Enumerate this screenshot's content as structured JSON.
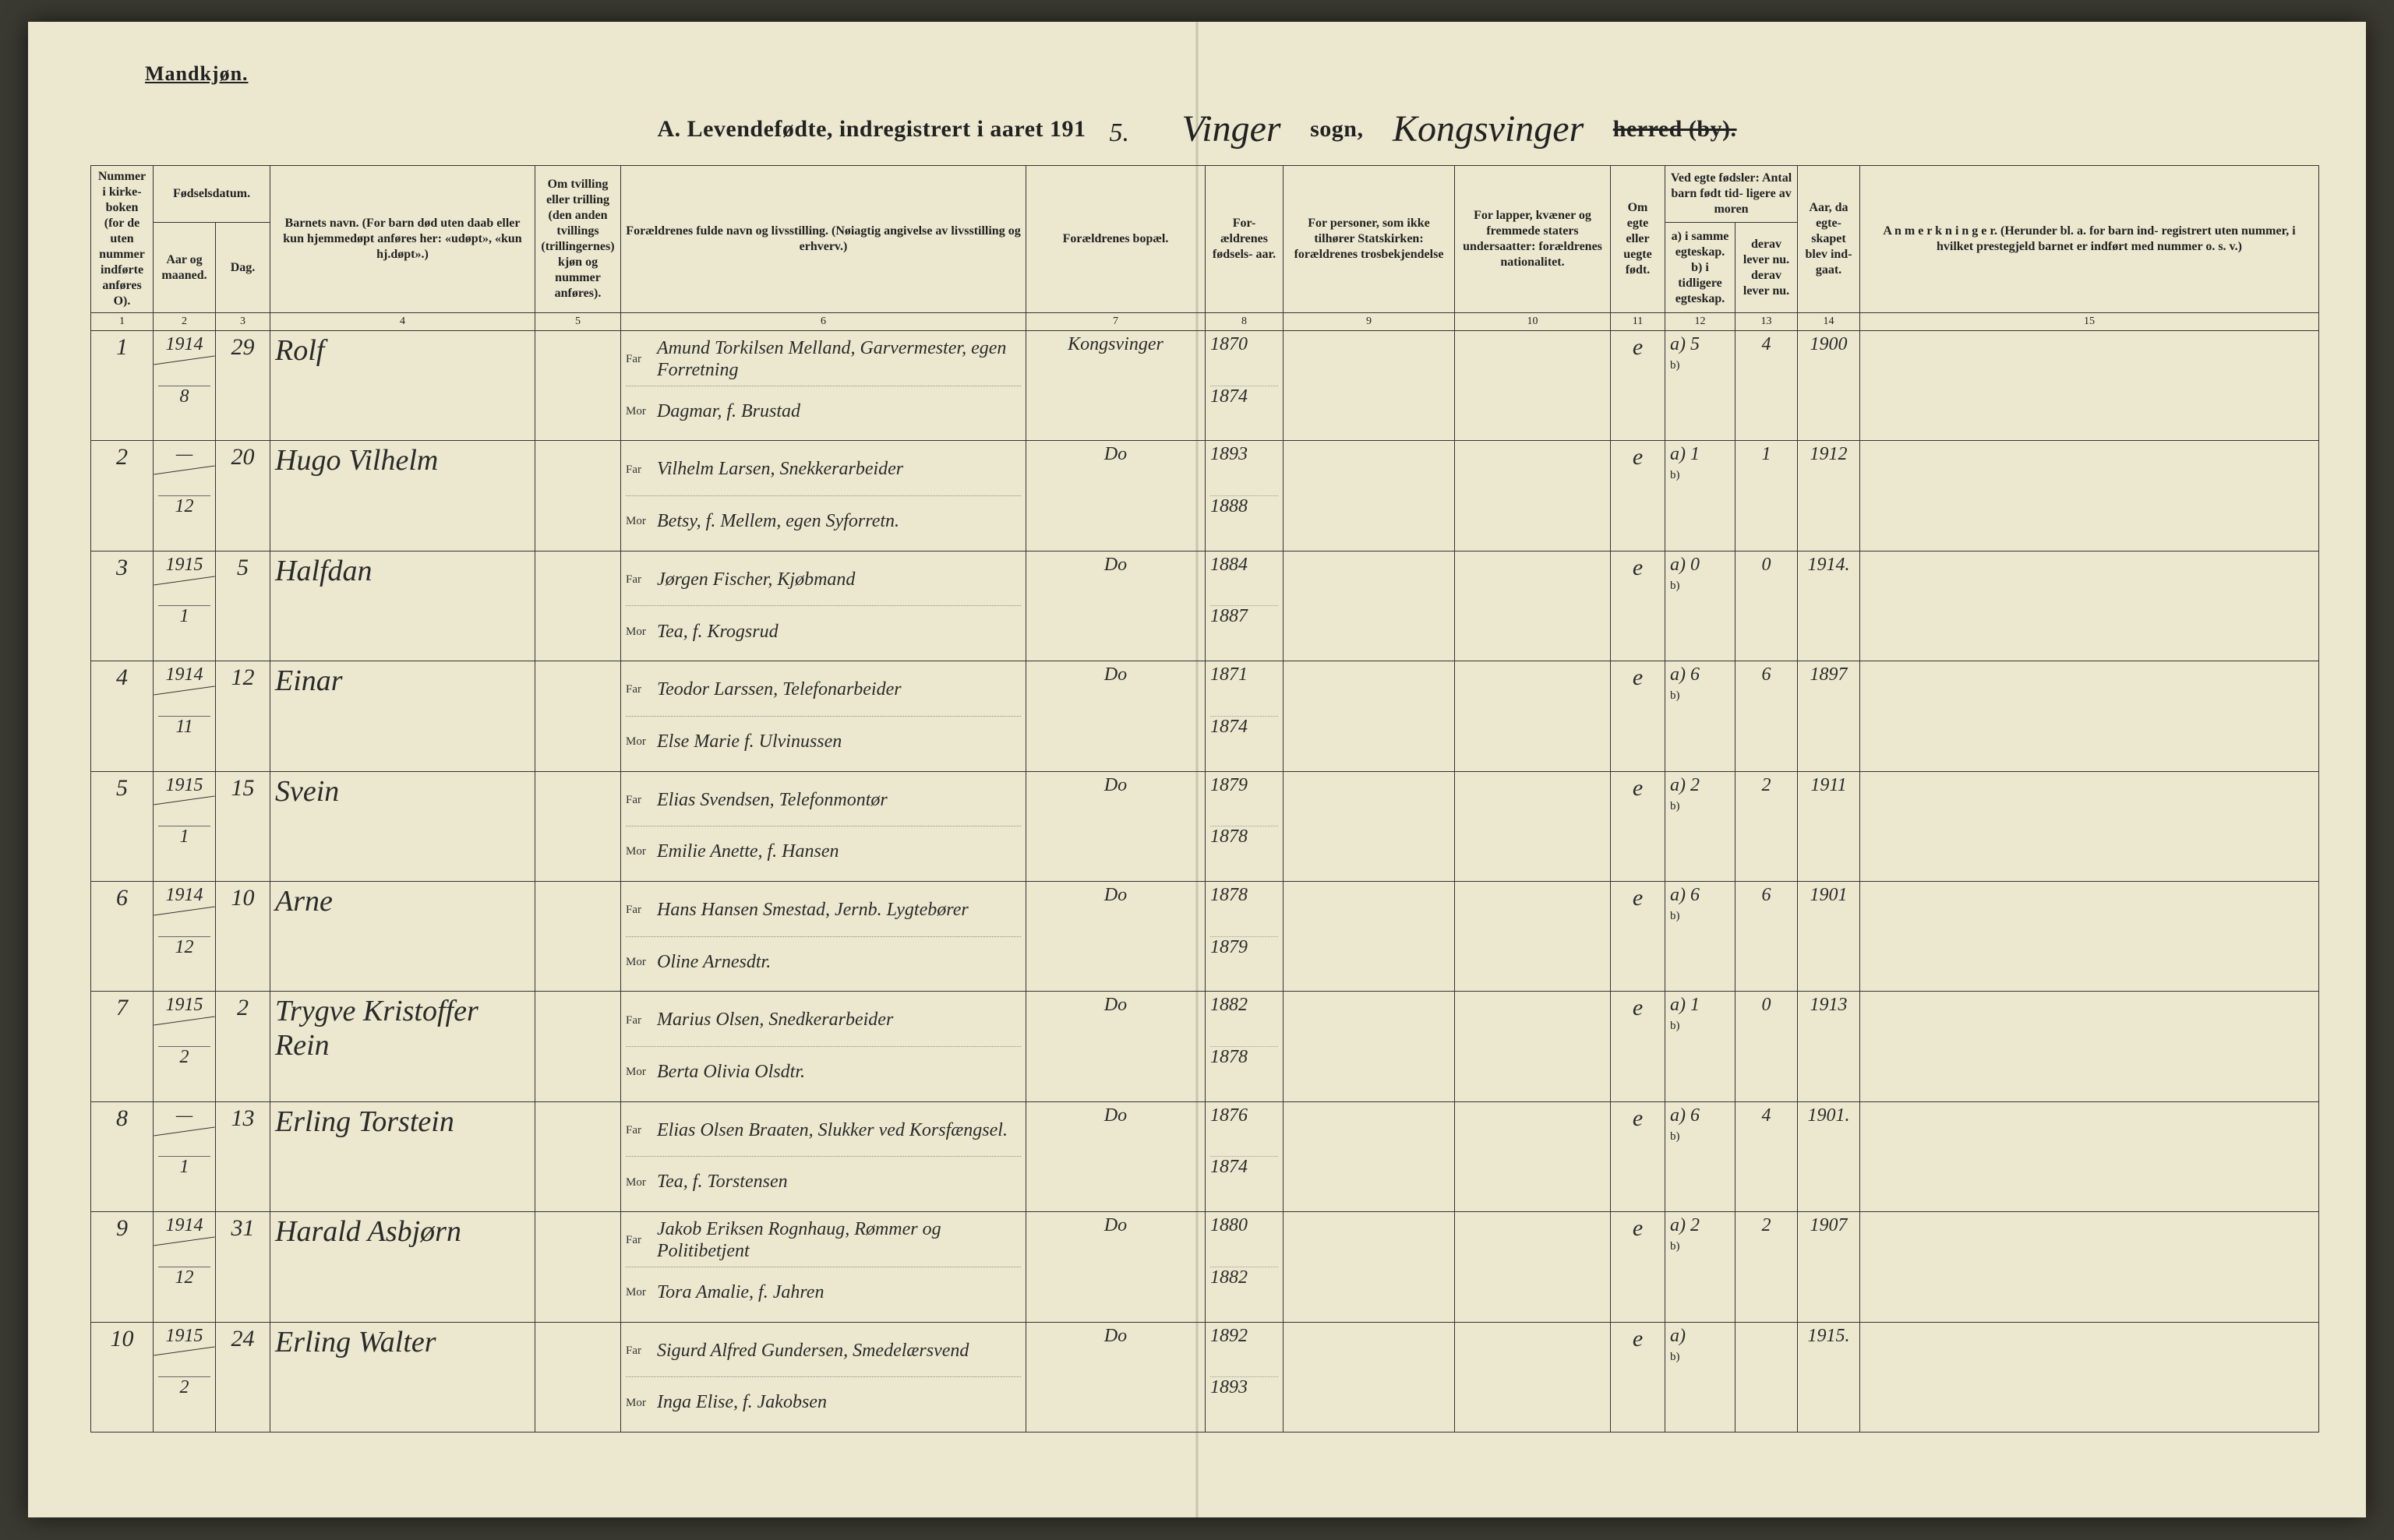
{
  "header": {
    "corner": "Mandkjøn.",
    "title_a": "A.  Levendefødte, indregistrert i aaret 191",
    "title_year_suffix": "5.",
    "sogn_script": "Vinger",
    "sogn_label": "sogn,",
    "parish_script": "Kongsvinger",
    "herred_by": "herred (by)."
  },
  "columns": {
    "c1": "Nummer i kirke- boken (for de uten nummer indførte anføres O).",
    "c2_top": "Fødselsdatum.",
    "c2a": "Aar og maaned.",
    "c2b": "Dag.",
    "c4": "Barnets navn.\n(For barn død uten daab eller kun hjemmedøpt anføres her: «udøpt», «kun hj.døpt».)",
    "c5": "Om tvilling eller trilling (den anden tvillings (trillingernes) kjøn og nummer anføres).",
    "c6": "Forældrenes fulde navn og livsstilling.\n(Nøiagtig angivelse av livsstilling og erhverv.)",
    "c7": "Forældrenes bopæl.",
    "c8": "For- ældrenes fødsels- aar.",
    "c9": "For personer, som ikke tilhører Statskirken: forældrenes trosbekjendelse",
    "c10": "For lapper, kvæner og fremmede staters undersaatter: forældrenes nationalitet.",
    "c11": "Om egte eller uegte født.",
    "c12_top": "Ved egte fødsler: Antal barn født tid- ligere av moren",
    "c12a": "a) i samme egteskap.\nb) i tidligere egteskap.",
    "c12b": "derav lever nu. derav lever nu.",
    "c14": "Aar, da egte- skapet blev ind- gaat.",
    "c15": "A n m e r k n i n g e r.\n(Herunder bl. a. for barn ind- registrert uten nummer, i hvilket prestegjeld barnet er indført med nummer o. s. v.)"
  },
  "colnums": [
    "1",
    "2",
    "3",
    "4",
    "5",
    "6",
    "7",
    "8",
    "9",
    "10",
    "11",
    "12",
    "13",
    "14",
    "15"
  ],
  "rows": [
    {
      "num": "1",
      "year": "1914",
      "month": "8",
      "day": "29",
      "name": "Rolf",
      "father": "Amund Torkilsen Melland, Garvermester, egen Forretning",
      "mother": "Dagmar, f. Brustad",
      "bopel": "Kongsvinger",
      "fy": "1870",
      "my": "1874",
      "egte": "e",
      "a": "5",
      "lever": "4",
      "marr": "1900"
    },
    {
      "num": "2",
      "year": "—",
      "month": "12",
      "day": "20",
      "name": "Hugo Vilhelm",
      "father": "Vilhelm Larsen, Snekkerarbeider",
      "mother": "Betsy, f. Mellem, egen Syforretn.",
      "bopel": "Do",
      "fy": "1893",
      "my": "1888",
      "egte": "e",
      "a": "1",
      "lever": "1",
      "marr": "1912"
    },
    {
      "num": "3",
      "year": "1915",
      "month": "1",
      "day": "5",
      "name": "Halfdan",
      "father": "Jørgen Fischer, Kjøbmand",
      "mother": "Tea, f. Krogsrud",
      "bopel": "Do",
      "fy": "1884",
      "my": "1887",
      "egte": "e",
      "a": "0",
      "lever": "0",
      "marr": "1914."
    },
    {
      "num": "4",
      "year": "1914",
      "month": "11",
      "day": "12",
      "name": "Einar",
      "father": "Teodor Larssen, Telefonarbeider",
      "mother": "Else Marie f. Ulvinussen",
      "bopel": "Do",
      "fy": "1871",
      "my": "1874",
      "egte": "e",
      "a": "6",
      "lever": "6",
      "marr": "1897"
    },
    {
      "num": "5",
      "year": "1915",
      "month": "1",
      "day": "15",
      "name": "Svein",
      "father": "Elias Svendsen, Telefonmontør",
      "mother": "Emilie Anette, f. Hansen",
      "bopel": "Do",
      "fy": "1879",
      "my": "1878",
      "egte": "e",
      "a": "2",
      "lever": "2",
      "marr": "1911"
    },
    {
      "num": "6",
      "year": "1914",
      "month": "12",
      "day": "10",
      "name": "Arne",
      "father": "Hans Hansen Smestad, Jernb. Lygtebører",
      "mother": "Oline Arnesdtr.",
      "bopel": "Do",
      "fy": "1878",
      "my": "1879",
      "egte": "e",
      "a": "6",
      "lever": "6",
      "marr": "1901"
    },
    {
      "num": "7",
      "year": "1915",
      "month": "2",
      "day": "2",
      "name": "Trygve Kristoffer Rein",
      "father": "Marius Olsen, Snedkerarbeider",
      "mother": "Berta Olivia Olsdtr.",
      "bopel": "Do",
      "fy": "1882",
      "my": "1878",
      "egte": "e",
      "a": "1",
      "lever": "0",
      "marr": "1913"
    },
    {
      "num": "8",
      "year": "—",
      "month": "1",
      "day": "13",
      "name": "Erling Torstein",
      "father": "Elias Olsen Braaten, Slukker ved Korsfængsel.",
      "mother": "Tea, f. Torstensen",
      "bopel": "Do",
      "fy": "1876",
      "my": "1874",
      "egte": "e",
      "a": "6",
      "lever": "4",
      "marr": "1901."
    },
    {
      "num": "9",
      "year": "1914",
      "month": "12",
      "day": "31",
      "name": "Harald Asbjørn",
      "father": "Jakob Eriksen Rognhaug, Rømmer og Politibetjent",
      "mother": "Tora Amalie, f. Jahren",
      "bopel": "Do",
      "fy": "1880",
      "my": "1882",
      "egte": "e",
      "a": "2",
      "lever": "2",
      "marr": "1907"
    },
    {
      "num": "10",
      "year": "1915",
      "month": "2",
      "day": "24",
      "name": "Erling Walter",
      "father": "Sigurd Alfred Gundersen, Smedelærsvend",
      "mother": "Inga Elise, f. Jakobsen",
      "bopel": "Do",
      "fy": "1892",
      "my": "1893",
      "egte": "e",
      "a": "",
      "lever": "",
      "marr": "1915."
    }
  ],
  "labels": {
    "far": "Far",
    "mor": "Mor"
  }
}
